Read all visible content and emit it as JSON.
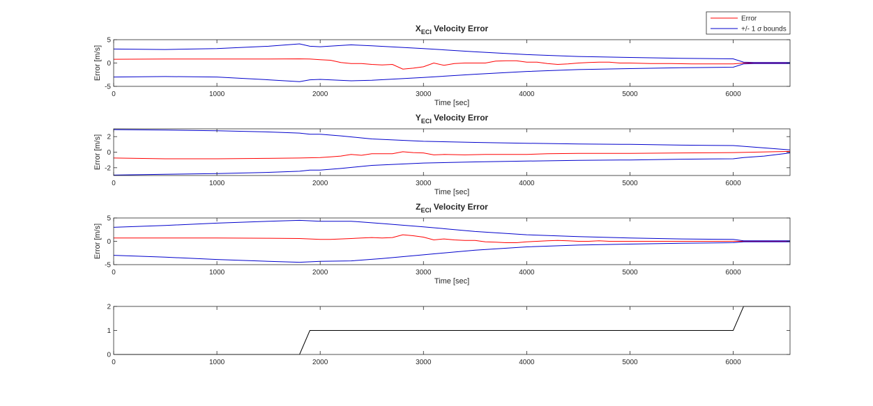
{
  "legend": {
    "entries": [
      {
        "label": "Error",
        "color": "#ff0000"
      },
      {
        "label": "+/- 1 σ bounds",
        "label_parts": [
          "+/- 1 ",
          "σ",
          " bounds"
        ],
        "color": "#0000cc"
      }
    ],
    "placement": "top-right"
  },
  "chart_data": [
    {
      "type": "line",
      "title": "X_ECI Velocity Error",
      "title_parts": {
        "main": "X",
        "sub": "ECI",
        "rest": " Velocity Error"
      },
      "xlabel": "Time [sec]",
      "ylabel": "Error [m/s]",
      "xlim": [
        0,
        6550
      ],
      "ylim": [
        -5,
        5
      ],
      "xticks": [
        0,
        1000,
        2000,
        3000,
        4000,
        5000,
        6000
      ],
      "yticks": [
        -5,
        0,
        5
      ],
      "series": [
        {
          "name": "Error",
          "color": "#ff0000",
          "x": [
            0,
            500,
            1000,
            1500,
            1800,
            1900,
            2000,
            2100,
            2200,
            2300,
            2400,
            2500,
            2600,
            2700,
            2800,
            2900,
            3000,
            3100,
            3200,
            3300,
            3400,
            3500,
            3600,
            3700,
            3800,
            3900,
            4000,
            4100,
            4200,
            4300,
            4400,
            4500,
            4600,
            4700,
            4800,
            4900,
            5000,
            5200,
            5400,
            5600,
            5800,
            6000,
            6100,
            6200,
            6550
          ],
          "y": [
            0.8,
            0.85,
            0.85,
            0.85,
            0.9,
            0.85,
            0.7,
            0.6,
            0.1,
            -0.1,
            -0.1,
            -0.3,
            -0.4,
            -0.3,
            -1.3,
            -1.1,
            -0.8,
            0.0,
            -0.5,
            -0.1,
            0.0,
            0.0,
            0.0,
            0.4,
            0.5,
            0.5,
            0.2,
            0.2,
            -0.1,
            -0.3,
            -0.2,
            0.0,
            0.1,
            0.2,
            0.2,
            0.0,
            0.0,
            -0.1,
            -0.1,
            -0.2,
            -0.2,
            -0.2,
            0.0,
            0.0,
            0.0
          ]
        },
        {
          "name": "+/- 1 σ bounds",
          "color": "#0000cc",
          "x": [
            0,
            500,
            1000,
            1500,
            1800,
            1900,
            2000,
            2300,
            2500,
            3000,
            3500,
            4000,
            4500,
            5000,
            5500,
            6000,
            6100,
            6200,
            6550
          ],
          "y": [
            3.0,
            2.9,
            3.1,
            3.6,
            4.1,
            3.6,
            3.5,
            3.9,
            3.7,
            3.1,
            2.4,
            1.8,
            1.4,
            1.2,
            1.0,
            0.9,
            0.2,
            0.1,
            0.1
          ]
        },
        {
          "name": "+/- 1 σ bounds",
          "color": "#0000cc",
          "x": [
            0,
            500,
            1000,
            1500,
            1800,
            1900,
            2000,
            2300,
            2500,
            3000,
            3500,
            4000,
            4500,
            5000,
            5500,
            6000,
            6100,
            6200,
            6550
          ],
          "y": [
            -3.0,
            -2.9,
            -3.0,
            -3.6,
            -4.0,
            -3.6,
            -3.5,
            -3.8,
            -3.7,
            -3.1,
            -2.4,
            -1.8,
            -1.4,
            -1.2,
            -1.0,
            -0.9,
            -0.2,
            -0.1,
            -0.1
          ]
        }
      ]
    },
    {
      "type": "line",
      "title": "Y_ECI Velocity Error",
      "title_parts": {
        "main": "Y",
        "sub": "ECI",
        "rest": " Velocity Error"
      },
      "xlabel": "Time [sec]",
      "ylabel": "Error [m/s]",
      "xlim": [
        0,
        6550
      ],
      "ylim": [
        -3,
        3
      ],
      "xticks": [
        0,
        1000,
        2000,
        3000,
        4000,
        5000,
        6000
      ],
      "yticks": [
        -2,
        0,
        2
      ],
      "series": [
        {
          "name": "Error",
          "color": "#ff0000",
          "x": [
            0,
            500,
            1000,
            1500,
            1800,
            2000,
            2100,
            2200,
            2300,
            2400,
            2500,
            2600,
            2700,
            2800,
            2900,
            3000,
            3100,
            3200,
            3400,
            3600,
            3800,
            4000,
            4200,
            4500,
            5000,
            5500,
            6000,
            6200,
            6550
          ],
          "y": [
            -0.75,
            -0.85,
            -0.85,
            -0.8,
            -0.75,
            -0.7,
            -0.6,
            -0.5,
            -0.3,
            -0.4,
            -0.2,
            -0.2,
            -0.2,
            0.05,
            -0.05,
            -0.1,
            -0.35,
            -0.3,
            -0.35,
            -0.3,
            -0.3,
            -0.3,
            -0.2,
            -0.15,
            -0.15,
            -0.1,
            -0.05,
            0.0,
            0.1
          ]
        },
        {
          "name": "+/- 1 σ bounds",
          "color": "#0000cc",
          "x": [
            0,
            500,
            1000,
            1500,
            1800,
            1900,
            2000,
            2200,
            2500,
            3000,
            3500,
            4000,
            4500,
            5000,
            5500,
            6000,
            6100,
            6300,
            6550
          ],
          "y": [
            2.9,
            2.85,
            2.75,
            2.6,
            2.45,
            2.3,
            2.3,
            2.1,
            1.7,
            1.4,
            1.25,
            1.15,
            1.05,
            1.0,
            0.9,
            0.85,
            0.75,
            0.55,
            0.3
          ]
        },
        {
          "name": "+/- 1 σ bounds",
          "color": "#0000cc",
          "x": [
            0,
            500,
            1000,
            1500,
            1800,
            1900,
            2000,
            2200,
            2500,
            3000,
            3500,
            4000,
            4500,
            5000,
            5500,
            6000,
            6100,
            6300,
            6550
          ],
          "y": [
            -2.95,
            -2.85,
            -2.75,
            -2.6,
            -2.45,
            -2.3,
            -2.3,
            -2.1,
            -1.7,
            -1.4,
            -1.25,
            -1.15,
            -1.05,
            -1.0,
            -0.9,
            -0.85,
            -0.7,
            -0.5,
            -0.1
          ]
        }
      ]
    },
    {
      "type": "line",
      "title": "Z_ECI Velocity Error",
      "title_parts": {
        "main": "Z",
        "sub": "ECI",
        "rest": " Velocity Error"
      },
      "xlabel": "Time [sec]",
      "ylabel": "Error [m/s]",
      "xlim": [
        0,
        6550
      ],
      "ylim": [
        -5,
        5
      ],
      "xticks": [
        0,
        1000,
        2000,
        3000,
        4000,
        5000,
        6000
      ],
      "yticks": [
        -5,
        0,
        5
      ],
      "series": [
        {
          "name": "Error",
          "color": "#ff0000",
          "x": [
            0,
            500,
            1000,
            1500,
            1800,
            2000,
            2100,
            2200,
            2300,
            2400,
            2500,
            2600,
            2700,
            2800,
            2900,
            3000,
            3100,
            3200,
            3300,
            3400,
            3500,
            3600,
            3700,
            3800,
            3900,
            4000,
            4100,
            4200,
            4300,
            4400,
            4500,
            4600,
            4700,
            4800,
            4900,
            5000,
            5500,
            6000,
            6100,
            6550
          ],
          "y": [
            0.7,
            0.7,
            0.7,
            0.65,
            0.6,
            0.4,
            0.4,
            0.5,
            0.6,
            0.7,
            0.8,
            0.7,
            0.8,
            1.4,
            1.2,
            0.9,
            0.3,
            0.5,
            0.3,
            0.2,
            0.2,
            -0.1,
            -0.2,
            -0.3,
            -0.3,
            -0.1,
            0.0,
            0.1,
            0.2,
            0.1,
            0.0,
            0.0,
            0.1,
            0.0,
            0.0,
            0.0,
            0.0,
            0.0,
            0.0,
            0.0
          ]
        },
        {
          "name": "+/- 1 σ bounds",
          "color": "#0000cc",
          "x": [
            0,
            500,
            1000,
            1500,
            1800,
            2000,
            2300,
            2600,
            3000,
            3500,
            4000,
            4500,
            5000,
            5500,
            6000,
            6100,
            6550
          ],
          "y": [
            3.0,
            3.4,
            3.9,
            4.3,
            4.5,
            4.3,
            4.3,
            3.8,
            3.1,
            2.1,
            1.4,
            1.0,
            0.7,
            0.5,
            0.4,
            0.1,
            0.1
          ]
        },
        {
          "name": "+/- 1 σ bounds",
          "color": "#0000cc",
          "x": [
            0,
            500,
            1000,
            1500,
            1800,
            2000,
            2300,
            2600,
            3000,
            3500,
            4000,
            4500,
            5000,
            5500,
            6000,
            6100,
            6550
          ],
          "y": [
            -3.0,
            -3.4,
            -3.9,
            -4.3,
            -4.5,
            -4.3,
            -4.2,
            -3.7,
            -2.9,
            -1.9,
            -1.2,
            -0.8,
            -0.6,
            -0.4,
            -0.3,
            -0.1,
            -0.1
          ]
        }
      ]
    },
    {
      "type": "line",
      "title": "",
      "xlabel": "",
      "ylabel": "",
      "xlim": [
        0,
        6550
      ],
      "ylim": [
        0,
        2
      ],
      "xticks": [
        0,
        1000,
        2000,
        3000,
        4000,
        5000,
        6000
      ],
      "yticks": [
        0,
        1,
        2
      ],
      "series": [
        {
          "color": "#000000",
          "x": [
            0,
            1800,
            1900,
            6000,
            6100,
            6550
          ],
          "y": [
            0,
            0,
            1,
            1,
            2,
            2
          ]
        }
      ]
    }
  ]
}
